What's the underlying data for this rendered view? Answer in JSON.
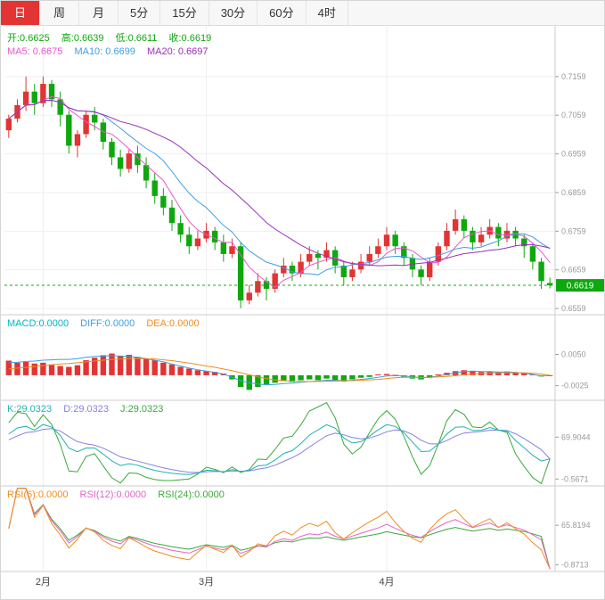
{
  "tabs": [
    {
      "label": "日",
      "active": true
    },
    {
      "label": "周"
    },
    {
      "label": "月"
    },
    {
      "label": "5分"
    },
    {
      "label": "15分"
    },
    {
      "label": "30分"
    },
    {
      "label": "60分"
    },
    {
      "label": "4时"
    }
  ],
  "colors": {
    "up": "#e23434",
    "down": "#0ea80e",
    "ma5": "#e958cf",
    "ma10": "#3f9fe0",
    "ma20": "#9b30b8",
    "macd_label": "#00b5c9",
    "diff": "#3f9fe0",
    "dea": "#f08c1e",
    "k": "#1fb3ad",
    "d": "#8781e0",
    "j": "#3aa93a",
    "rsi6": "#f08c1e",
    "rsi12": "#e463c6",
    "rsi24": "#3aa93a",
    "ohlc_text": "#0ea80e",
    "axis_text": "#999999",
    "grid": "#efefef",
    "separator": "#cccccc",
    "month_text": "#444444",
    "tab_active_bg": "#e23434"
  },
  "readouts": {
    "ohlc": [
      {
        "text": "开:0.6625",
        "color": "#0ea80e"
      },
      {
        "text": "高:0.6639",
        "color": "#0ea80e"
      },
      {
        "text": "低:0.6611",
        "color": "#0ea80e"
      },
      {
        "text": "收:0.6619",
        "color": "#0ea80e"
      }
    ],
    "ma": [
      {
        "text": "MA5: 0.6675",
        "color": "#e958cf"
      },
      {
        "text": "MA10: 0.6699",
        "color": "#3f9fe0"
      },
      {
        "text": "MA20: 0.6697",
        "color": "#9b30b8"
      }
    ],
    "macd": [
      {
        "text": "MACD:0.0000",
        "color": "#00b5c9"
      },
      {
        "text": "DIFF:0.0000",
        "color": "#3f9fe0"
      },
      {
        "text": "DEA:0.0000",
        "color": "#f08c1e"
      }
    ],
    "kdj": [
      {
        "text": "K:29.0323",
        "color": "#1fb3ad"
      },
      {
        "text": "D:29.0323",
        "color": "#8781e0"
      },
      {
        "text": "J:29.0323",
        "color": "#3aa93a"
      }
    ],
    "rsi": [
      {
        "text": "RSI(6):0.0000",
        "color": "#f08c1e"
      },
      {
        "text": "RSI(12):0.0000",
        "color": "#e463c6"
      },
      {
        "text": "RSI(24):0.0000",
        "color": "#3aa93a"
      }
    ]
  },
  "chart_data": {
    "type": "candlestick",
    "panels": [
      "price+MA",
      "MACD",
      "KDJ",
      "RSI"
    ],
    "x_labels": [
      {
        "label": "2月",
        "index": 4
      },
      {
        "label": "3月",
        "index": 23
      },
      {
        "label": "4月",
        "index": 44
      }
    ],
    "price_axis_ticks": [
      "0.7159",
      "0.7059",
      "0.6959",
      "0.6859",
      "0.6759",
      "0.6659",
      "0.6559"
    ],
    "price_domain": [
      0.6543,
      0.729
    ],
    "last_price": 0.6619,
    "last_price_label": "0.6619",
    "ohlc_last": {
      "open": 0.6625,
      "high": 0.6639,
      "low": 0.6611,
      "close": 0.6619
    },
    "ma_last": {
      "ma5": 0.6675,
      "ma10": 0.6699,
      "ma20": 0.6697
    },
    "kdj_last": 29.0323,
    "rsi_last": 0.0,
    "kdj_axis_ticks": [
      "69.9044",
      "-0.5671"
    ],
    "rsi_axis_ticks": [
      "65.8194",
      "-0.8713"
    ],
    "candles": [
      [
        0.702,
        0.706,
        0.7,
        0.705
      ],
      [
        0.705,
        0.71,
        0.704,
        0.7085
      ],
      [
        0.7085,
        0.7159,
        0.707,
        0.712
      ],
      [
        0.712,
        0.714,
        0.706,
        0.709
      ],
      [
        0.709,
        0.7159,
        0.708,
        0.714
      ],
      [
        0.714,
        0.715,
        0.708,
        0.71
      ],
      [
        0.71,
        0.712,
        0.703,
        0.706
      ],
      [
        0.706,
        0.707,
        0.696,
        0.698
      ],
      [
        0.698,
        0.702,
        0.695,
        0.701
      ],
      [
        0.701,
        0.707,
        0.7,
        0.706
      ],
      [
        0.706,
        0.708,
        0.702,
        0.704
      ],
      [
        0.704,
        0.705,
        0.697,
        0.699
      ],
      [
        0.699,
        0.7,
        0.693,
        0.695
      ],
      [
        0.695,
        0.697,
        0.69,
        0.692
      ],
      [
        0.692,
        0.697,
        0.691,
        0.696
      ],
      [
        0.696,
        0.698,
        0.691,
        0.693
      ],
      [
        0.693,
        0.695,
        0.687,
        0.689
      ],
      [
        0.689,
        0.691,
        0.683,
        0.685
      ],
      [
        0.685,
        0.687,
        0.68,
        0.682
      ],
      [
        0.682,
        0.684,
        0.676,
        0.678
      ],
      [
        0.678,
        0.68,
        0.673,
        0.675
      ],
      [
        0.675,
        0.677,
        0.67,
        0.672
      ],
      [
        0.672,
        0.676,
        0.671,
        0.674
      ],
      [
        0.674,
        0.678,
        0.673,
        0.676
      ],
      [
        0.676,
        0.677,
        0.671,
        0.673
      ],
      [
        0.673,
        0.675,
        0.668,
        0.67
      ],
      [
        0.67,
        0.674,
        0.669,
        0.672
      ],
      [
        0.672,
        0.673,
        0.656,
        0.658
      ],
      [
        0.658,
        0.662,
        0.657,
        0.66
      ],
      [
        0.66,
        0.665,
        0.659,
        0.663
      ],
      [
        0.663,
        0.664,
        0.658,
        0.661
      ],
      [
        0.661,
        0.666,
        0.66,
        0.665
      ],
      [
        0.665,
        0.669,
        0.664,
        0.667
      ],
      [
        0.667,
        0.668,
        0.663,
        0.665
      ],
      [
        0.665,
        0.67,
        0.664,
        0.668
      ],
      [
        0.668,
        0.672,
        0.667,
        0.67
      ],
      [
        0.67,
        0.671,
        0.666,
        0.669
      ],
      [
        0.669,
        0.673,
        0.668,
        0.671
      ],
      [
        0.671,
        0.672,
        0.665,
        0.667
      ],
      [
        0.667,
        0.668,
        0.662,
        0.664
      ],
      [
        0.664,
        0.668,
        0.663,
        0.666
      ],
      [
        0.666,
        0.67,
        0.665,
        0.668
      ],
      [
        0.668,
        0.672,
        0.667,
        0.67
      ],
      [
        0.67,
        0.674,
        0.669,
        0.672
      ],
      [
        0.672,
        0.677,
        0.671,
        0.675
      ],
      [
        0.675,
        0.676,
        0.67,
        0.672
      ],
      [
        0.672,
        0.673,
        0.667,
        0.669
      ],
      [
        0.669,
        0.67,
        0.664,
        0.666
      ],
      [
        0.666,
        0.667,
        0.662,
        0.664
      ],
      [
        0.664,
        0.669,
        0.663,
        0.668
      ],
      [
        0.668,
        0.673,
        0.667,
        0.672
      ],
      [
        0.672,
        0.678,
        0.671,
        0.676
      ],
      [
        0.676,
        0.6815,
        0.675,
        0.679
      ],
      [
        0.679,
        0.68,
        0.674,
        0.676
      ],
      [
        0.676,
        0.677,
        0.671,
        0.673
      ],
      [
        0.673,
        0.677,
        0.672,
        0.675
      ],
      [
        0.675,
        0.679,
        0.674,
        0.677
      ],
      [
        0.677,
        0.678,
        0.672,
        0.674
      ],
      [
        0.674,
        0.678,
        0.673,
        0.676
      ],
      [
        0.676,
        0.677,
        0.672,
        0.674
      ],
      [
        0.674,
        0.675,
        0.669,
        0.672
      ],
      [
        0.672,
        0.673,
        0.666,
        0.668
      ],
      [
        0.668,
        0.669,
        0.661,
        0.663
      ],
      [
        0.6625,
        0.6639,
        0.6611,
        0.6619
      ]
    ],
    "macd": {
      "domain": [
        -0.006,
        0.0145
      ],
      "axis_ticks": [
        "0.0050",
        "-0.0025"
      ],
      "bars": [
        0.0035,
        0.003,
        0.0032,
        0.0028,
        0.003,
        0.0026,
        0.0022,
        0.002,
        0.0024,
        0.0036,
        0.0042,
        0.0048,
        0.0052,
        0.0046,
        0.0049,
        0.0044,
        0.004,
        0.0036,
        0.003,
        0.0026,
        0.002,
        0.0016,
        0.0012,
        0.001,
        0.0008,
        0.0004,
        -0.001,
        -0.0028,
        -0.0035,
        -0.0028,
        -0.0022,
        -0.0018,
        -0.0014,
        -0.0016,
        -0.0012,
        -0.001,
        -0.0012,
        -0.0008,
        -0.0012,
        -0.0015,
        -0.001,
        -0.0006,
        -0.0004,
        0.0002,
        0.0003,
        0.0001,
        -0.0004,
        -0.0008,
        -0.001,
        -0.0006,
        0.0002,
        0.0006,
        0.001,
        0.0012,
        0.001,
        0.0008,
        0.0009,
        0.0008,
        0.0009,
        0.0007,
        0.0005,
        0.0002,
        -0.0003,
        0.0
      ],
      "diff": [
        0.003,
        0.0031,
        0.0033,
        0.0034,
        0.0036,
        0.0037,
        0.0038,
        0.0038,
        0.004,
        0.0043,
        0.0045,
        0.0046,
        0.0047,
        0.0046,
        0.0045,
        0.0043,
        0.004,
        0.0036,
        0.0032,
        0.0027,
        0.0022,
        0.0017,
        0.0013,
        0.001,
        0.0007,
        0.0003,
        -0.0005,
        -0.0013,
        -0.0018,
        -0.0021,
        -0.0023,
        -0.0022,
        -0.002,
        -0.0019,
        -0.0017,
        -0.0015,
        -0.0014,
        -0.0012,
        -0.0012,
        -0.0013,
        -0.0012,
        -0.001,
        -0.0008,
        -0.0005,
        -0.0002,
        -0.0001,
        -0.0002,
        -0.0004,
        -0.0006,
        -0.0005,
        -0.0002,
        0.0002,
        0.0006,
        0.0009,
        0.001,
        0.0009,
        0.0009,
        0.0008,
        0.0008,
        0.0007,
        0.0005,
        0.0002,
        -0.0002,
        0.0
      ],
      "dea": [
        0.0015,
        0.0017,
        0.0019,
        0.0021,
        0.0023,
        0.0025,
        0.0027,
        0.0028,
        0.003,
        0.0032,
        0.0034,
        0.0036,
        0.0038,
        0.0039,
        0.004,
        0.004,
        0.004,
        0.0039,
        0.0037,
        0.0035,
        0.0032,
        0.0029,
        0.0026,
        0.0022,
        0.0019,
        0.0015,
        0.0011,
        0.0006,
        0.0001,
        -0.0004,
        -0.0008,
        -0.0011,
        -0.0013,
        -0.0014,
        -0.0015,
        -0.0015,
        -0.0015,
        -0.0014,
        -0.0014,
        -0.0013,
        -0.0013,
        -0.0012,
        -0.0011,
        -0.001,
        -0.0008,
        -0.0006,
        -0.0005,
        -0.0005,
        -0.0005,
        -0.0005,
        -0.0004,
        -0.0003,
        -0.0001,
        0.0001,
        0.0003,
        0.0004,
        0.0005,
        0.0006,
        0.0006,
        0.0006,
        0.0006,
        0.0005,
        0.0003,
        0.0
      ]
    }
  }
}
